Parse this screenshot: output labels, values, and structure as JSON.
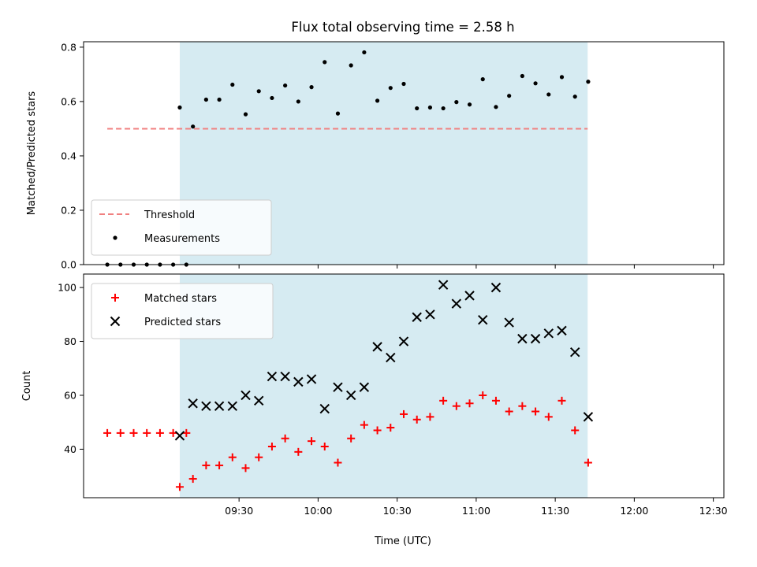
{
  "chart_data": {
    "title": "Flux total observing time = 2.58 h",
    "xlabel": "Time (UTC)",
    "x_tick_labels": [
      "09:30",
      "10:00",
      "10:30",
      "11:00",
      "11:30",
      "12:00",
      "12:30"
    ],
    "x_ticks_minutes": [
      570,
      600,
      630,
      660,
      690,
      720,
      750
    ],
    "xlim_minutes": [
      511,
      754
    ],
    "shaded_span_minutes": [
      547.5,
      702.3
    ],
    "colors": {
      "shade": "#add8e6",
      "threshold": "#f08080",
      "measurements": "#000000",
      "matched": "#ff0000",
      "predicted": "#000000"
    },
    "panels": [
      {
        "type": "scatter",
        "ylabel": "Matched/Predicted stars",
        "ylim": [
          0,
          0.82
        ],
        "y_ticks": [
          0.0,
          0.2,
          0.4,
          0.6,
          0.8
        ],
        "y_tick_labels": [
          "0.0",
          "0.2",
          "0.4",
          "0.6",
          "0.8"
        ],
        "grid": false,
        "legend_position": "lower-left",
        "threshold": {
          "name": "Threshold",
          "y": 0.5,
          "x_range": [
            520,
            702.3
          ]
        },
        "series": [
          {
            "name": "Measurements",
            "points": [
              [
                520,
                0.0
              ],
              [
                525,
                0.0
              ],
              [
                530,
                0.0
              ],
              [
                535,
                0.0
              ],
              [
                540,
                0.0
              ],
              [
                545,
                0.0
              ],
              [
                550,
                0.0
              ],
              [
                547.5,
                0.578
              ],
              [
                552.5,
                0.508
              ],
              [
                557.5,
                0.607
              ],
              [
                562.5,
                0.607
              ],
              [
                567.5,
                0.662
              ],
              [
                572.5,
                0.553
              ],
              [
                577.5,
                0.638
              ],
              [
                582.5,
                0.613
              ],
              [
                587.5,
                0.659
              ],
              [
                592.5,
                0.6
              ],
              [
                597.5,
                0.653
              ],
              [
                602.5,
                0.745
              ],
              [
                607.5,
                0.556
              ],
              [
                612.5,
                0.733
              ],
              [
                617.5,
                0.781
              ],
              [
                622.5,
                0.603
              ],
              [
                627.5,
                0.65
              ],
              [
                632.5,
                0.665
              ],
              [
                637.5,
                0.575
              ],
              [
                642.5,
                0.578
              ],
              [
                647.5,
                0.575
              ],
              [
                652.5,
                0.598
              ],
              [
                657.5,
                0.589
              ],
              [
                662.5,
                0.682
              ],
              [
                667.5,
                0.58
              ],
              [
                672.5,
                0.621
              ],
              [
                677.5,
                0.694
              ],
              [
                682.5,
                0.667
              ],
              [
                687.5,
                0.626
              ],
              [
                692.5,
                0.69
              ],
              [
                697.5,
                0.618
              ],
              [
                702.5,
                0.673
              ]
            ]
          }
        ]
      },
      {
        "type": "scatter",
        "ylabel": "Count",
        "ylim": [
          22,
          105
        ],
        "y_ticks": [
          40,
          60,
          80,
          100
        ],
        "y_tick_labels": [
          "40",
          "60",
          "80",
          "100"
        ],
        "grid": false,
        "legend_position": "upper-left",
        "series": [
          {
            "name": "Matched stars",
            "marker": "plus",
            "points": [
              [
                520,
                46
              ],
              [
                525,
                46
              ],
              [
                530,
                46
              ],
              [
                535,
                46
              ],
              [
                540,
                46
              ],
              [
                545,
                46
              ],
              [
                550,
                46
              ],
              [
                547.5,
                26
              ],
              [
                552.5,
                29
              ],
              [
                557.5,
                34
              ],
              [
                562.5,
                34
              ],
              [
                567.5,
                37
              ],
              [
                572.5,
                33
              ],
              [
                577.5,
                37
              ],
              [
                582.5,
                41
              ],
              [
                587.5,
                44
              ],
              [
                592.5,
                39
              ],
              [
                597.5,
                43
              ],
              [
                602.5,
                41
              ],
              [
                607.5,
                35
              ],
              [
                612.5,
                44
              ],
              [
                617.5,
                49
              ],
              [
                622.5,
                47
              ],
              [
                627.5,
                48
              ],
              [
                632.5,
                53
              ],
              [
                637.5,
                51
              ],
              [
                642.5,
                52
              ],
              [
                647.5,
                58
              ],
              [
                652.5,
                56
              ],
              [
                657.5,
                57
              ],
              [
                662.5,
                60
              ],
              [
                667.5,
                58
              ],
              [
                672.5,
                54
              ],
              [
                677.5,
                56
              ],
              [
                682.5,
                54
              ],
              [
                687.5,
                52
              ],
              [
                692.5,
                58
              ],
              [
                697.5,
                47
              ],
              [
                702.5,
                35
              ]
            ]
          },
          {
            "name": "Predicted stars",
            "marker": "x",
            "points": [
              [
                547.5,
                45
              ],
              [
                552.5,
                57
              ],
              [
                557.5,
                56
              ],
              [
                562.5,
                56
              ],
              [
                567.5,
                56
              ],
              [
                572.5,
                60
              ],
              [
                577.5,
                58
              ],
              [
                582.5,
                67
              ],
              [
                587.5,
                67
              ],
              [
                592.5,
                65
              ],
              [
                597.5,
                66
              ],
              [
                602.5,
                55
              ],
              [
                607.5,
                63
              ],
              [
                612.5,
                60
              ],
              [
                617.5,
                63
              ],
              [
                622.5,
                78
              ],
              [
                627.5,
                74
              ],
              [
                632.5,
                80
              ],
              [
                637.5,
                89
              ],
              [
                642.5,
                90
              ],
              [
                647.5,
                101
              ],
              [
                652.5,
                94
              ],
              [
                657.5,
                97
              ],
              [
                662.5,
                88
              ],
              [
                667.5,
                100
              ],
              [
                672.5,
                87
              ],
              [
                677.5,
                81
              ],
              [
                682.5,
                81
              ],
              [
                687.5,
                83
              ],
              [
                692.5,
                84
              ],
              [
                697.5,
                76
              ],
              [
                702.5,
                52
              ]
            ]
          }
        ]
      }
    ]
  }
}
